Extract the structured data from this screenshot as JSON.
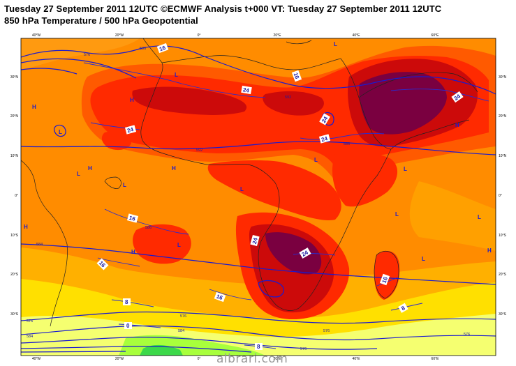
{
  "header": {
    "line1": "Tuesday 27 September 2011 12UTC ©ECMWF Analysis t+000 VT: Tuesday 27 September 2011 12UTC",
    "line2": "850 hPa Temperature / 500 hPa Geopotential"
  },
  "axes": {
    "lon_ticks": [
      "40°W",
      "20°W",
      "0°",
      "20°E",
      "40°E",
      "60°E"
    ],
    "lat_ticks_left": [
      "30°N",
      "20°N",
      "10°N",
      "0°",
      "10°S",
      "20°S",
      "30°S"
    ],
    "lat_ticks_right": [
      "30°N",
      "20°N",
      "10°N",
      "0°",
      "10°S",
      "20°S",
      "30°S"
    ]
  },
  "temperature_labels": [
    "16",
    "24",
    "24",
    "16",
    "24",
    "24",
    "16",
    "16",
    "24",
    "24",
    "24",
    "16",
    "16",
    "8",
    "0",
    "8",
    "8"
  ],
  "geopotential_labels": [
    "586",
    "576",
    "592",
    "592",
    "586",
    "586",
    "584",
    "576",
    "576",
    "584",
    "584",
    "576",
    "576",
    "576"
  ],
  "pressure_centers": [
    "H",
    "H",
    "H",
    "H",
    "H",
    "H",
    "H",
    "H",
    "L",
    "L",
    "L",
    "L",
    "L",
    "L",
    "L",
    "L",
    "L",
    "L",
    "L",
    "L"
  ],
  "colors": {
    "ocean_cool": "#ff8c00",
    "warm": "#ff5a00",
    "hot": "#ff2a00",
    "very_hot": "#cc0a0a",
    "hottest": "#7a0040",
    "cool_1": "#ffb000",
    "cool_2": "#ffe000",
    "cold_1": "#f5ff70",
    "cold_2": "#a8ff3c",
    "cold_3": "#3cd84a",
    "contour": "#1a1ad0"
  },
  "watermark": "albrari.com"
}
